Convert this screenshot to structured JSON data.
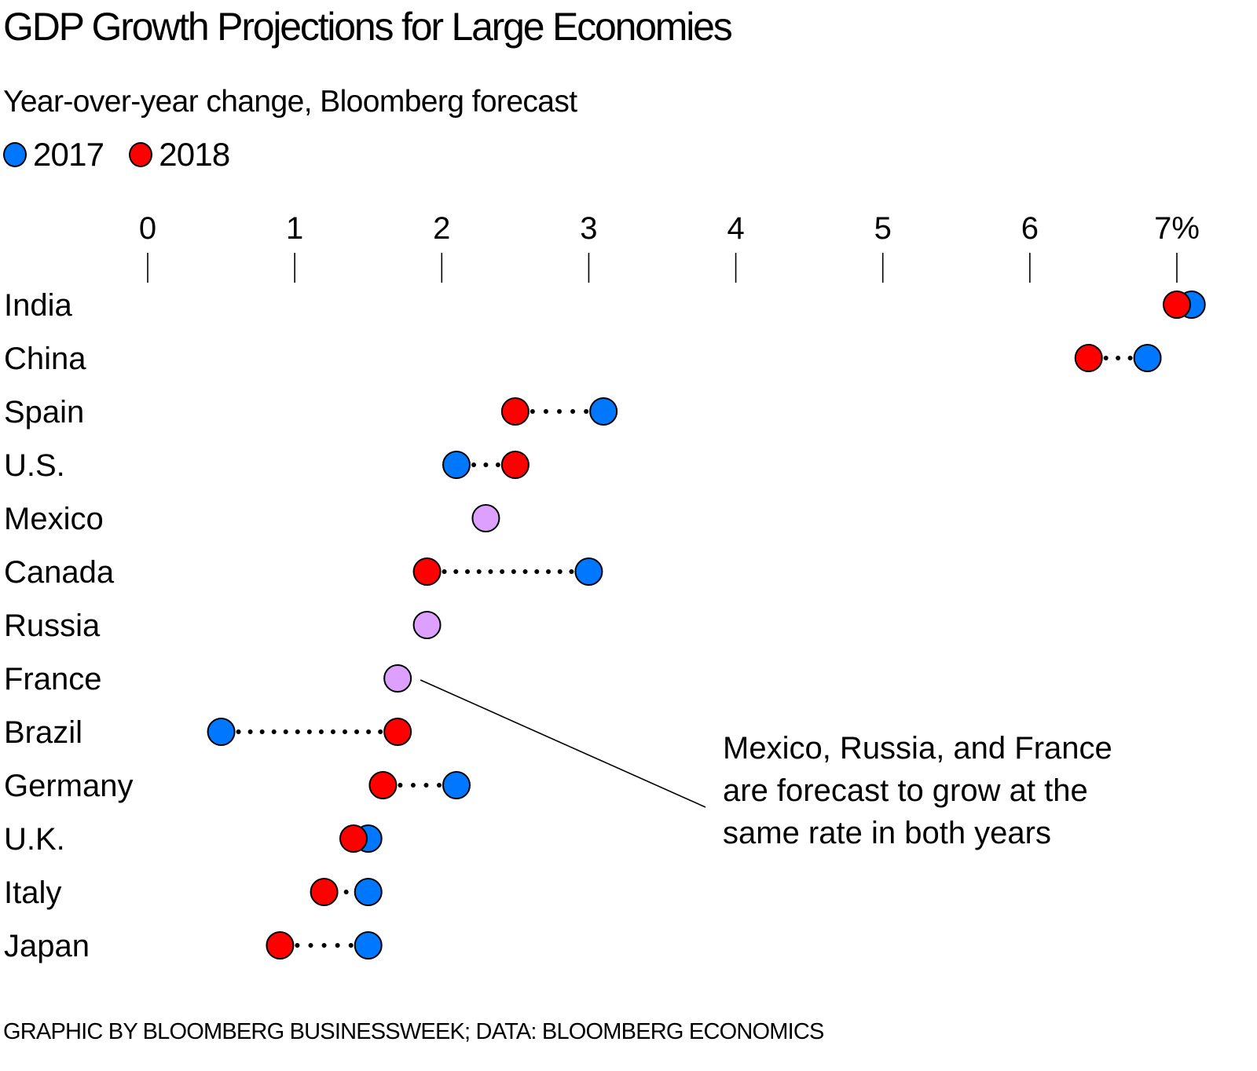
{
  "header": {
    "title": "GDP Growth Projections for Large Economies",
    "subtitle": "Year-over-year change, Bloomberg forecast"
  },
  "legend": [
    {
      "label": "2017",
      "color": "#0077ff"
    },
    {
      "label": "2018",
      "color": "#ff0000"
    }
  ],
  "colors": {
    "y2017": "#0077ff",
    "y2018": "#ff0000",
    "same": "#dda0ff",
    "outline": "#000000"
  },
  "annotation": {
    "text": "Mexico, Russia, and France are forecast to grow at the same rate in both years",
    "target": "France"
  },
  "footer": "GRAPHIC BY BLOOMBERG BUSINESSWEEK; DATA: BLOOMBERG ECONOMICS",
  "chart_data": {
    "type": "scatter",
    "subtype": "dot-plot",
    "title": "GDP Growth Projections for Large Economies",
    "subtitle": "Year-over-year change, Bloomberg forecast",
    "xlabel": "",
    "ylabel": "",
    "unit": "%",
    "xlim": [
      0,
      7
    ],
    "x_ticks": [
      0,
      1,
      2,
      3,
      4,
      5,
      6,
      7
    ],
    "x_tick_labels": [
      "0",
      "1",
      "2",
      "3",
      "4",
      "5",
      "6",
      "7%"
    ],
    "axis_position": "top",
    "grid": false,
    "legend_position": "top-left",
    "categories": [
      "India",
      "China",
      "Spain",
      "U.S.",
      "Mexico",
      "Canada",
      "Russia",
      "France",
      "Brazil",
      "Germany",
      "U.K.",
      "Italy",
      "Japan"
    ],
    "series": [
      {
        "name": "2017",
        "values": [
          7.1,
          6.8,
          3.1,
          2.1,
          2.3,
          3.0,
          1.9,
          1.7,
          0.5,
          2.1,
          1.5,
          1.5,
          1.5
        ]
      },
      {
        "name": "2018",
        "values": [
          7.0,
          6.4,
          2.5,
          2.5,
          2.3,
          1.9,
          1.9,
          1.7,
          1.7,
          1.6,
          1.4,
          1.2,
          0.9
        ]
      }
    ],
    "annotations": [
      {
        "text": "Mexico, Russia, and France are forecast to grow at the same rate in both years",
        "points_to": "France"
      }
    ]
  }
}
